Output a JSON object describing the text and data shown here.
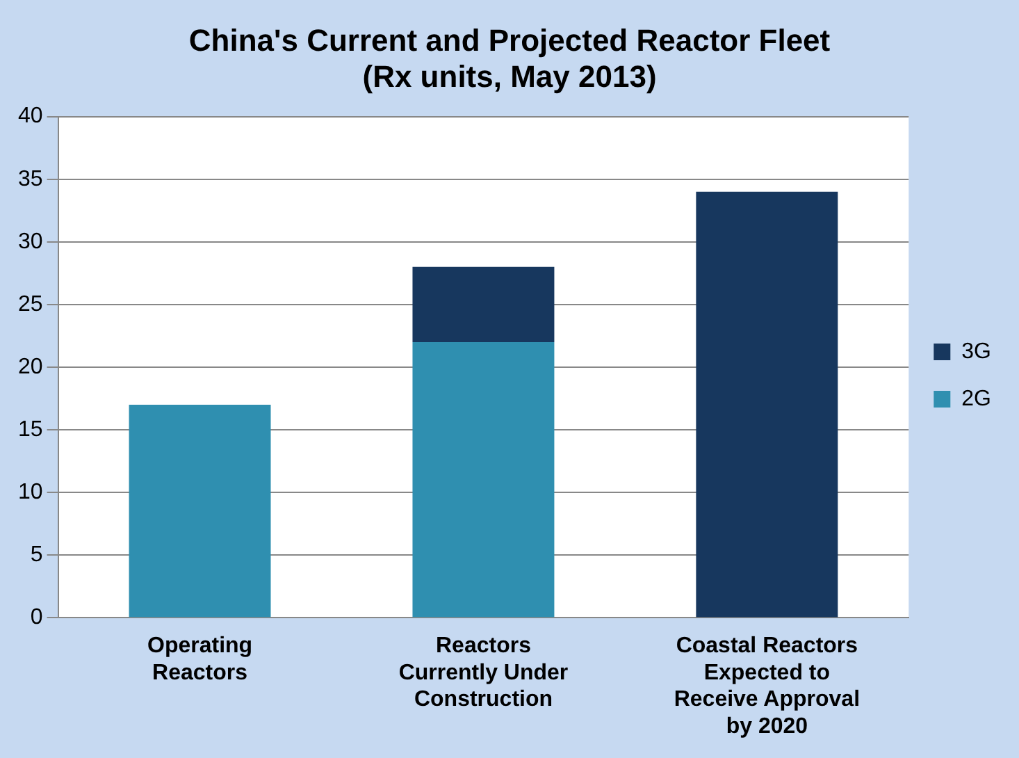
{
  "chart_data": {
    "type": "bar",
    "title": "China's Current and Projected Reactor Fleet\n(Rx units, May 2013)",
    "categories": [
      "Operating Reactors",
      "Reactors Currently Under Construction",
      "Coastal Reactors Expected to Receive Approval by 2020"
    ],
    "series": [
      {
        "name": "2G",
        "color": "#2f8fb0",
        "values": [
          17,
          22,
          0
        ]
      },
      {
        "name": "3G",
        "color": "#17375e",
        "values": [
          0,
          6,
          34
        ]
      }
    ],
    "stacked": true,
    "ylim": [
      0,
      40
    ],
    "yticks": [
      0,
      5,
      10,
      15,
      20,
      25,
      30,
      35,
      40
    ],
    "grid": "y",
    "legend": "right"
  }
}
